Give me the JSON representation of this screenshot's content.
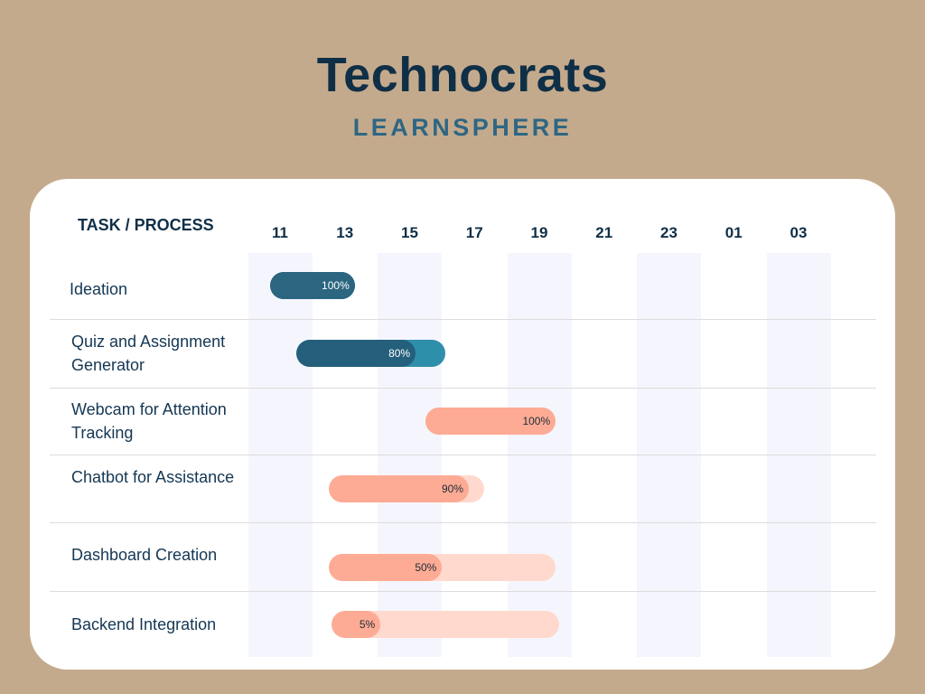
{
  "header": {
    "title": "Technocrats",
    "subtitle": "LEARNSPHERE"
  },
  "chart_data": {
    "type": "gantt",
    "task_header": "TASK / PROCESS",
    "x_ticks": [
      "11",
      "13",
      "15",
      "17",
      "19",
      "21",
      "23",
      "01",
      "03"
    ],
    "tasks": [
      {
        "name": "Ideation",
        "start_tick": 0,
        "end_tick": 1,
        "progress": 100,
        "progress_label": "100%",
        "color": "#2b6580",
        "track_color": "#2b6580",
        "label_color": "#ffffff"
      },
      {
        "name": "Quiz and Assignment Generator",
        "start_tick": 0.4,
        "end_tick": 2.4,
        "progress": 80,
        "progress_label": "80%",
        "color": "#245f7c",
        "track_color": "#2e8fab",
        "label_color": "#ffffff"
      },
      {
        "name": "Webcam for Attention Tracking",
        "start_tick": 2.4,
        "end_tick": 4.1,
        "progress": 100,
        "progress_label": "100%",
        "color": "#fdab94",
        "track_color": "#fdab94",
        "label_color": "#1e2b38"
      },
      {
        "name": "Chatbot for Assistance",
        "start_tick": 0.9,
        "end_tick": 3.0,
        "progress": 90,
        "progress_label": "90%",
        "color": "#fdab94",
        "track_color": "#ffd9cd",
        "label_color": "#1e2b38"
      },
      {
        "name": "Dashboard Creation",
        "start_tick": 0.9,
        "end_tick": 4.1,
        "progress": 50,
        "progress_label": "50%",
        "color": "#fdab94",
        "track_color": "#ffd9cd",
        "label_color": "#1e2b38"
      },
      {
        "name": "Backend Integration",
        "start_tick": 0.95,
        "end_tick": 4.15,
        "progress": 5,
        "progress_label": "5%",
        "color": "#fdab94",
        "track_color": "#ffd9cd",
        "label_color": "#1e2b38"
      }
    ],
    "column_shading": "alternating",
    "band_color": "#f5f6fd"
  }
}
